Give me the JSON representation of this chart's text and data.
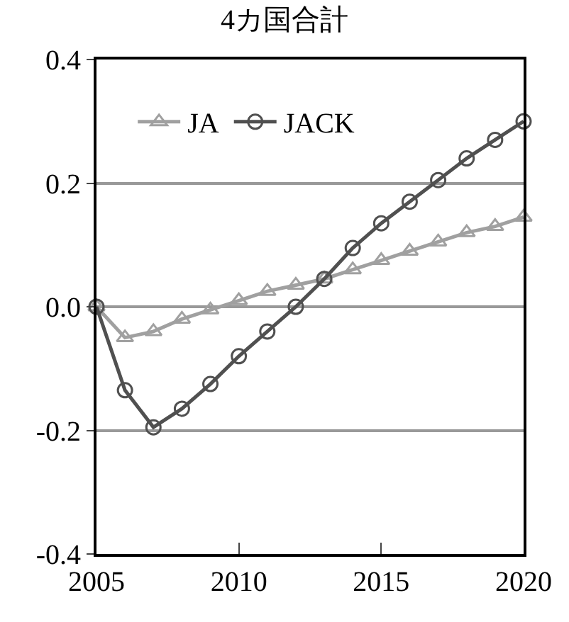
{
  "chart_data": {
    "type": "line",
    "title": "4カ国合計",
    "x": [
      2005,
      2006,
      2007,
      2008,
      2009,
      2010,
      2011,
      2012,
      2013,
      2014,
      2015,
      2016,
      2017,
      2018,
      2019,
      2020
    ],
    "series": [
      {
        "name": "JA",
        "color": "#a0a0a0",
        "marker": "triangle",
        "values": [
          0,
          -0.05,
          -0.04,
          -0.02,
          -0.005,
          0.01,
          0.025,
          0.035,
          0.045,
          0.06,
          0.075,
          0.09,
          0.105,
          0.12,
          0.13,
          0.145
        ]
      },
      {
        "name": "JACK",
        "color": "#505050",
        "marker": "circle",
        "values": [
          0,
          -0.135,
          -0.195,
          -0.165,
          -0.125,
          -0.08,
          -0.04,
          0.0,
          0.045,
          0.095,
          0.135,
          0.17,
          0.205,
          0.24,
          0.27,
          0.3
        ]
      }
    ],
    "xlim": [
      2005,
      2020
    ],
    "xticks": [
      2005,
      2010,
      2015,
      2020
    ],
    "ylim": [
      -0.4,
      0.4
    ],
    "yticks": [
      {
        "value": -0.4,
        "label": "-0.4"
      },
      {
        "value": -0.2,
        "label": "-0.2"
      },
      {
        "value": 0,
        "label": "0.0"
      },
      {
        "value": 0.2,
        "label": "0.2"
      },
      {
        "value": 0.4,
        "label": "0.4"
      }
    ],
    "grid": "y",
    "legend": "top left",
    "line_style": "solid"
  }
}
